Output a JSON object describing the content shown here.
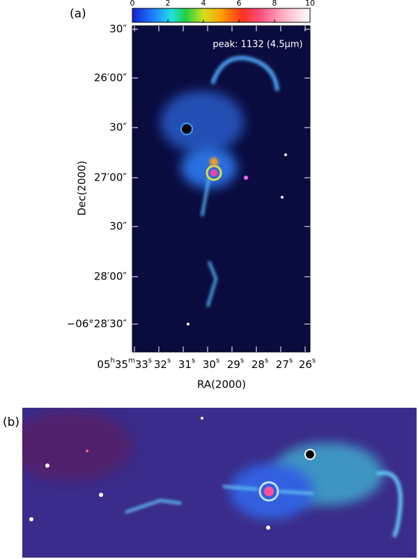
{
  "panel_a": {
    "label": "(a)",
    "colorbar": {
      "ticks": [
        0,
        2,
        4,
        6,
        8,
        10
      ]
    },
    "annotation": "peak: 1132 (4.5μm)",
    "y_axis": {
      "title": "Dec(2000)",
      "ticks": [
        "30″",
        "26′00″",
        "30″",
        "27′00″",
        "30″",
        "28′00″",
        "−06°28′30″"
      ]
    },
    "x_axis": {
      "title": "RA(2000)",
      "ticks": [
        "05h35m33s",
        "32s",
        "31s",
        "30s",
        "29s",
        "28s",
        "27s",
        "26s"
      ]
    }
  },
  "panel_b": {
    "label": "(b)"
  }
}
